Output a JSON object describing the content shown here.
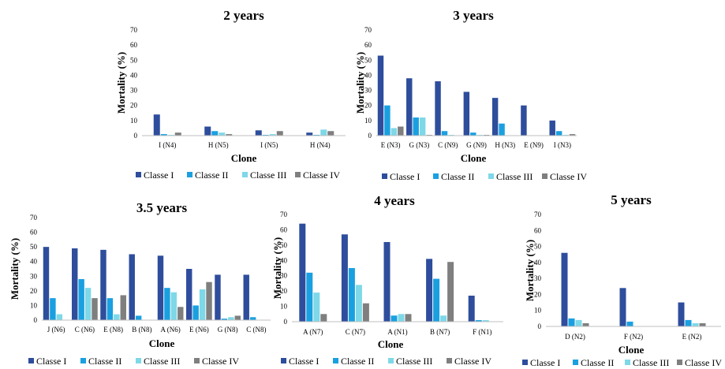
{
  "legend_colors": {
    "Classe I": "#2e4d9c",
    "Classe II": "#1aa0e0",
    "Classe III": "#7ed8e8",
    "Classe IV": "#7f7f7f"
  },
  "chart_data": [
    {
      "type": "bar",
      "title": "2 years",
      "xlabel": "Clone",
      "ylabel": "Mortality (%)",
      "ylim": [
        0,
        70
      ],
      "yticks": [
        0,
        10,
        20,
        30,
        40,
        50,
        60,
        70
      ],
      "categories": [
        "I (N4)",
        "H (N5)",
        "I (N5)",
        "H (N4)"
      ],
      "series": [
        {
          "name": "Classe I",
          "values": [
            14,
            6,
            3.5,
            2
          ]
        },
        {
          "name": "Classe II",
          "values": [
            1,
            3,
            0.5,
            0.5
          ]
        },
        {
          "name": "Classe III",
          "values": [
            0.5,
            2,
            1,
            4
          ]
        },
        {
          "name": "Classe IV",
          "values": [
            2,
            1,
            3,
            3
          ]
        }
      ],
      "legend": [
        "Classe I",
        "Classe II",
        "Classe III",
        "Classe IV"
      ],
      "grid": false,
      "legend_position": "bottom"
    },
    {
      "type": "bar",
      "title": "3 years",
      "xlabel": "Clone",
      "ylabel": "Mortality (%)",
      "ylim": [
        0,
        70
      ],
      "yticks": [
        0,
        10,
        20,
        30,
        40,
        50,
        60,
        70
      ],
      "categories": [
        "E (N3)",
        "G (N3)",
        "C (N9)",
        "G (N9)",
        "H (N3)",
        "E (N9)",
        "I (N3)"
      ],
      "series": [
        {
          "name": "Classe I",
          "values": [
            53,
            38,
            36,
            29,
            25,
            20,
            10
          ]
        },
        {
          "name": "Classe II",
          "values": [
            20,
            12,
            3,
            2,
            8,
            0,
            3
          ]
        },
        {
          "name": "Classe III",
          "values": [
            5,
            12,
            0.5,
            0.5,
            0,
            0,
            0.5
          ]
        },
        {
          "name": "Classe IV",
          "values": [
            6,
            0.5,
            0,
            0.5,
            0,
            0,
            1
          ]
        }
      ],
      "legend": [
        "Classe I",
        "Classe II",
        "Classe III",
        "Classe IV"
      ],
      "grid": false,
      "legend_position": "bottom"
    },
    {
      "type": "bar",
      "title": "3.5 years",
      "xlabel": "Clone",
      "ylabel": "Mortality (%)",
      "ylim": [
        0,
        70
      ],
      "yticks": [
        0,
        10,
        20,
        30,
        40,
        50,
        60,
        70
      ],
      "categories": [
        "J (N6)",
        "C (N6)",
        "E (N8)",
        "B (N8)",
        "A (N6)",
        "E (N6)",
        "G (N8)",
        "C (N8)"
      ],
      "series": [
        {
          "name": "Classe I",
          "values": [
            50,
            49,
            48,
            45,
            44,
            35,
            31,
            31
          ]
        },
        {
          "name": "Classe II",
          "values": [
            15,
            28,
            15,
            3,
            22,
            10,
            1,
            2
          ]
        },
        {
          "name": "Classe III",
          "values": [
            4,
            22,
            4,
            0,
            19,
            21,
            2,
            0
          ]
        },
        {
          "name": "Classe IV",
          "values": [
            0,
            15,
            17,
            0,
            9,
            26,
            3,
            0
          ]
        }
      ],
      "legend": [
        "Classe I",
        "Classe II",
        "Classe III",
        "Classe IV"
      ],
      "grid": false,
      "legend_position": "bottom"
    },
    {
      "type": "bar",
      "title": "4 years",
      "xlabel": "Clone",
      "ylabel": "Mortality (%)",
      "ylim": [
        0,
        70
      ],
      "yticks": [
        0,
        10,
        20,
        30,
        40,
        50,
        60,
        70
      ],
      "categories": [
        "A (N7)",
        "C (N7)",
        "A (N1)",
        "B (N7)",
        "F (N1)"
      ],
      "series": [
        {
          "name": "Classe I",
          "values": [
            64,
            57,
            52,
            41,
            17
          ]
        },
        {
          "name": "Classe II",
          "values": [
            32,
            35,
            4,
            28,
            1
          ]
        },
        {
          "name": "Classe III",
          "values": [
            19,
            24,
            5,
            4,
            1
          ]
        },
        {
          "name": "Classe IV",
          "values": [
            5,
            12,
            5,
            39,
            0
          ]
        }
      ],
      "legend": [
        "Classe I",
        "Classe II",
        "Classe III",
        "Classe IV"
      ],
      "grid": false,
      "legend_position": "bottom"
    },
    {
      "type": "bar",
      "title": "5 years",
      "xlabel": "Clone",
      "ylabel": "Mortality (%)",
      "ylim": [
        0,
        70
      ],
      "yticks": [
        0,
        10,
        20,
        30,
        40,
        50,
        60,
        70
      ],
      "categories": [
        "D (N2)",
        "F (N2)",
        "E (N2)"
      ],
      "series": [
        {
          "name": "Classe I",
          "values": [
            46,
            24,
            15
          ]
        },
        {
          "name": "Classe II",
          "values": [
            5,
            3,
            4
          ]
        },
        {
          "name": "Classe III",
          "values": [
            4,
            0,
            2
          ]
        },
        {
          "name": "Classe IV",
          "values": [
            2,
            0,
            2
          ]
        }
      ],
      "legend": [
        "Classe I",
        "Classe II",
        "Classe III",
        "Classe IV"
      ],
      "grid": false,
      "legend_position": "bottom"
    }
  ]
}
